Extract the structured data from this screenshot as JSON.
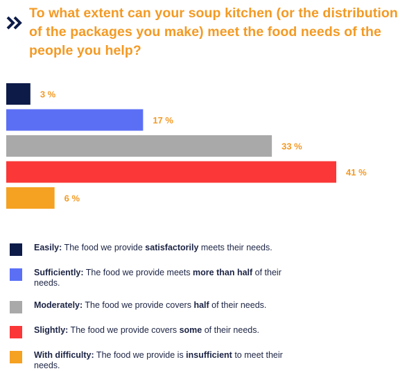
{
  "title": "To what extent can your soup kitchen (or the distribution of the packages you make) meet the food needs of the people you help?",
  "icon": "double-chevron-right-icon",
  "chart_data": {
    "type": "bar",
    "orientation": "horizontal",
    "categories": [
      "Easily",
      "Sufficiently",
      "Moderately",
      "Slightly",
      "With difficulty"
    ],
    "values": [
      3,
      17,
      33,
      41,
      6
    ],
    "value_labels": [
      "3 %",
      "17 %",
      "33 %",
      "41 %",
      "6 %"
    ],
    "colors": [
      "#0d1b48",
      "#5b6ff5",
      "#a9a9a9",
      "#fb3737",
      "#f5a122"
    ],
    "label_color": "#f39a24",
    "xlim": [
      0,
      41
    ],
    "legend_position": "bottom"
  },
  "legend": [
    {
      "lead": "Easily:",
      "parts": [
        {
          "t": " The food we provide "
        },
        {
          "t": "satisfactorily",
          "b": true
        },
        {
          "t": " meets their needs."
        }
      ],
      "color": "#0d1b48"
    },
    {
      "lead": "Sufficiently:",
      "parts": [
        {
          "t": " The food we provide meets "
        },
        {
          "t": "more than half",
          "b": true
        },
        {
          "t": " of their needs."
        }
      ],
      "color": "#5b6ff5"
    },
    {
      "lead": "Moderately:",
      "parts": [
        {
          "t": " The food we provide covers "
        },
        {
          "t": "half",
          "b": true
        },
        {
          "t": " of their needs."
        }
      ],
      "color": "#a9a9a9"
    },
    {
      "lead": "Slightly:",
      "parts": [
        {
          "t": " The food we provide covers "
        },
        {
          "t": "some",
          "b": true
        },
        {
          "t": " of their needs."
        }
      ],
      "color": "#fb3737"
    },
    {
      "lead": "With difficulty:",
      "parts": [
        {
          "t": " The food we provide is "
        },
        {
          "t": "insufficient",
          "b": true
        },
        {
          "t": " to meet their needs."
        }
      ],
      "color": "#f5a122"
    }
  ]
}
